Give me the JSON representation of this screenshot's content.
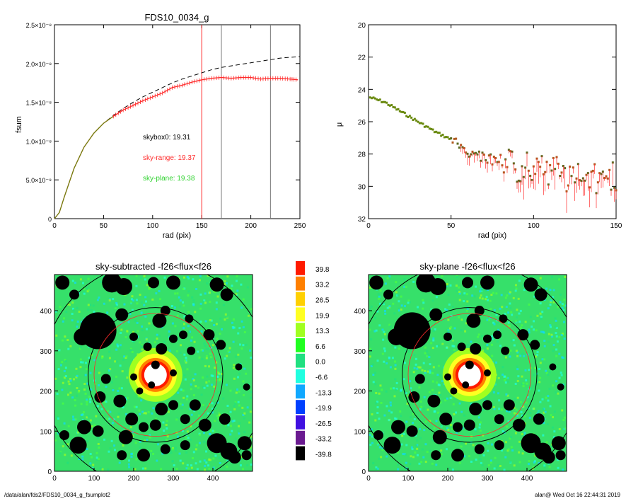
{
  "footer": {
    "left": "/data/alan/fds2/FDS10_0034_g_fsumplot2",
    "right": "alan@  Wed Oct 16 22:44:31 2019"
  },
  "colors": {
    "red": "#ff2a2a",
    "green": "#2fd22f",
    "gray": "#777777",
    "black": "#000000"
  },
  "chart_data": [
    {
      "type": "line",
      "title": "FDS10_0034_g",
      "xlabel": "rad (pix)",
      "ylabel": "fsum",
      "xlim": [
        0,
        250
      ],
      "ylim": [
        0,
        2.5e-08
      ],
      "x_ticks": [
        "0",
        "50",
        "100",
        "150",
        "200",
        "250"
      ],
      "y_ticks": [
        "0",
        "5.0×10⁻⁹",
        "1.0×10⁻⁸",
        "1.5×10⁻⁸",
        "2.0×10⁻⁸",
        "2.5×10⁻⁸"
      ],
      "vertical_lines": [
        {
          "x": 150,
          "color": "red"
        },
        {
          "x": 170,
          "color": "gray"
        },
        {
          "x": 220,
          "color": "gray"
        }
      ],
      "annotations": [
        {
          "text": "skybox0: 19.31",
          "color": "black"
        },
        {
          "text": "sky-range: 19.37",
          "color": "red"
        },
        {
          "text": "sky-plane: 19.38",
          "color": "green"
        }
      ],
      "series": [
        {
          "style": "dashed-black",
          "x": [
            0,
            5,
            10,
            20,
            30,
            40,
            50,
            60,
            70,
            80,
            90,
            100,
            110,
            120,
            130,
            140,
            150,
            160,
            170,
            180,
            190,
            200,
            210,
            220,
            230,
            240,
            250
          ],
          "y": [
            0,
            8e-10,
            2.8e-09,
            6.5e-09,
            9.2e-09,
            1.1e-08,
            1.23e-08,
            1.33e-08,
            1.42e-08,
            1.5e-08,
            1.57e-08,
            1.63e-08,
            1.69e-08,
            1.75e-08,
            1.8e-08,
            1.84e-08,
            1.88e-08,
            1.92e-08,
            1.95e-08,
            1.97e-08,
            1.99e-08,
            2.01e-08,
            2.03e-08,
            2.05e-08,
            2.07e-08,
            2.08e-08,
            2.09e-08
          ]
        },
        {
          "style": "red-errorbars",
          "x": [
            0,
            5,
            10,
            20,
            30,
            40,
            50,
            60,
            70,
            80,
            90,
            100,
            110,
            120,
            130,
            140,
            150,
            160,
            170,
            180,
            190,
            200,
            210,
            220,
            230,
            240,
            248
          ],
          "y": [
            0,
            8e-10,
            2.8e-09,
            6.5e-09,
            9.2e-09,
            1.1e-08,
            1.23e-08,
            1.32e-08,
            1.4e-08,
            1.46e-08,
            1.52e-08,
            1.57e-08,
            1.62e-08,
            1.69e-08,
            1.72e-08,
            1.76e-08,
            1.79e-08,
            1.81e-08,
            1.82e-08,
            1.81e-08,
            1.82e-08,
            1.82e-08,
            1.8e-08,
            1.81e-08,
            1.81e-08,
            1.8e-08,
            1.79e-08
          ]
        }
      ]
    },
    {
      "type": "scatter",
      "title": "",
      "xlabel": "rad (pix)",
      "ylabel": "μ",
      "xlim": [
        0,
        150
      ],
      "ylim": [
        32,
        20
      ],
      "x_ticks": [
        "0",
        "50",
        "100",
        "150"
      ],
      "y_ticks": [
        "20",
        "22",
        "24",
        "26",
        "28",
        "30",
        "32"
      ],
      "profile": {
        "x": [
          1,
          10,
          20,
          30,
          40,
          50,
          55,
          60,
          65,
          70,
          75,
          80,
          85,
          90,
          95,
          100,
          105,
          110,
          115,
          120,
          125,
          130,
          135,
          140,
          145,
          150
        ],
        "y": [
          24.5,
          24.8,
          25.4,
          26.0,
          26.6,
          27.1,
          27.5,
          27.8,
          28.1,
          28.2,
          28.4,
          28.8,
          28.5,
          29.0,
          28.6,
          29.0,
          28.7,
          29.3,
          28.8,
          29.5,
          29.0,
          29.7,
          29.2,
          29.8,
          29.3,
          29.5
        ]
      }
    },
    {
      "type": "heatmap",
      "title": "sky-subtracted -f26<flux<f26",
      "x_ticks": [
        "0",
        "100",
        "200",
        "300",
        "400"
      ],
      "y_ticks": [
        "0",
        "100",
        "200",
        "300",
        "400"
      ],
      "xlim": [
        0,
        500
      ],
      "ylim": [
        0,
        490
      ]
    },
    {
      "type": "heatmap",
      "title": "sky-plane -f26<flux<f26",
      "x_ticks": [
        "0",
        "100",
        "200",
        "300",
        "400"
      ],
      "y_ticks": [
        "0",
        "100",
        "200",
        "300",
        "400"
      ],
      "xlim": [
        0,
        500
      ],
      "ylim": [
        0,
        490
      ]
    }
  ],
  "colorbar": {
    "labels": [
      "39.8",
      "33.2",
      "26.5",
      "19.9",
      "13.3",
      "6.6",
      "0.0",
      "-6.6",
      "-13.3",
      "-19.9",
      "-26.5",
      "-33.2",
      "-39.8"
    ],
    "colors": [
      "#ff1a00",
      "#ff8000",
      "#ffd000",
      "#ffff22",
      "#a0ff20",
      "#20ff20",
      "#20e080",
      "#20ffe0",
      "#10a8ff",
      "#0040ff",
      "#4010e0",
      "#6a1a90",
      "#000000"
    ]
  }
}
